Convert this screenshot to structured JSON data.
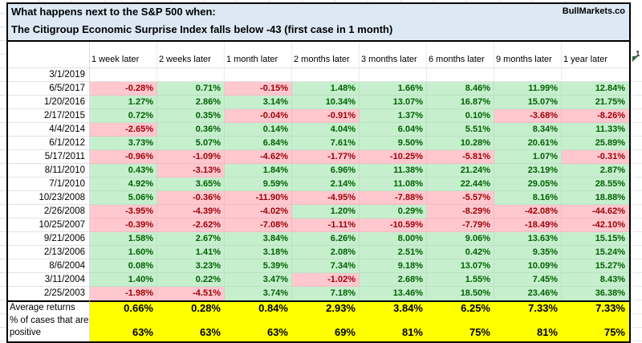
{
  "title": {
    "line1": "What happens next to the S&P 500 when:",
    "line2": "The Citigroup Economic Surprise Index falls below -43 (first case in 1 month)",
    "watermark": "BullMarkets.co"
  },
  "edge": {
    "header_fragment": "1"
  },
  "colors": {
    "positive_bg": "#c6efce",
    "positive_text": "#006100",
    "negative_bg": "#ffc7ce",
    "negative_text": "#9c0006",
    "title_bg": "#dce9f5",
    "summary_bg": "#ffff00"
  },
  "table": {
    "columns": [
      "1 week later",
      "2 weeks later",
      "1 month later",
      "2 months later",
      "3 months later",
      "6 months later",
      "9 months later",
      "1 year later"
    ],
    "rows": [
      {
        "date": "3/1/2019",
        "values": [
          "",
          "",
          "",
          "",
          "",
          "",
          "",
          ""
        ]
      },
      {
        "date": "6/5/2017",
        "values": [
          "-0.28%",
          "0.71%",
          "-0.15%",
          "1.48%",
          "1.66%",
          "8.46%",
          "11.99%",
          "12.84%"
        ]
      },
      {
        "date": "1/20/2016",
        "values": [
          "1.27%",
          "2.86%",
          "3.14%",
          "10.34%",
          "13.07%",
          "16.87%",
          "15.07%",
          "21.75%"
        ]
      },
      {
        "date": "2/17/2015",
        "values": [
          "0.72%",
          "0.35%",
          "-0.04%",
          "-0.91%",
          "1.37%",
          "0.10%",
          "-3.68%",
          "-8.26%"
        ]
      },
      {
        "date": "4/4/2014",
        "values": [
          "-2.65%",
          "0.36%",
          "0.14%",
          "4.04%",
          "6.04%",
          "5.51%",
          "8.34%",
          "11.33%"
        ]
      },
      {
        "date": "6/1/2012",
        "values": [
          "3.73%",
          "5.07%",
          "6.84%",
          "7.61%",
          "9.50%",
          "10.28%",
          "20.61%",
          "25.89%"
        ]
      },
      {
        "date": "5/17/2011",
        "values": [
          "-0.96%",
          "-1.09%",
          "-4.62%",
          "-1.77%",
          "-10.25%",
          "-5.81%",
          "1.07%",
          "-0.31%"
        ]
      },
      {
        "date": "8/11/2010",
        "values": [
          "0.43%",
          "-3.13%",
          "1.84%",
          "6.96%",
          "11.38%",
          "21.24%",
          "23.19%",
          "2.87%"
        ]
      },
      {
        "date": "7/1/2010",
        "values": [
          "4.92%",
          "3.65%",
          "9.59%",
          "2.14%",
          "11.08%",
          "22.44%",
          "29.05%",
          "28.55%"
        ]
      },
      {
        "date": "10/23/2008",
        "values": [
          "5.06%",
          "-0.36%",
          "-11.90%",
          "-4.95%",
          "-7.88%",
          "-5.57%",
          "8.16%",
          "18.88%"
        ]
      },
      {
        "date": "2/26/2008",
        "values": [
          "-3.95%",
          "-4.39%",
          "-4.02%",
          "1.20%",
          "0.29%",
          "-8.29%",
          "-42.08%",
          "-44.62%"
        ]
      },
      {
        "date": "10/25/2007",
        "values": [
          "-0.39%",
          "-2.62%",
          "-7.08%",
          "-1.11%",
          "-10.59%",
          "-7.79%",
          "-18.49%",
          "-42.10%"
        ]
      },
      {
        "date": "9/21/2006",
        "values": [
          "1.58%",
          "2.67%",
          "3.84%",
          "6.26%",
          "8.00%",
          "9.06%",
          "13.63%",
          "15.15%"
        ]
      },
      {
        "date": "2/13/2006",
        "values": [
          "1.60%",
          "1.41%",
          "3.18%",
          "2.08%",
          "2.51%",
          "0.42%",
          "9.35%",
          "15.24%"
        ]
      },
      {
        "date": "8/6/2004",
        "values": [
          "0.08%",
          "3.23%",
          "5.39%",
          "7.34%",
          "9.18%",
          "13.07%",
          "10.09%",
          "15.27%"
        ]
      },
      {
        "date": "3/11/2004",
        "values": [
          "1.40%",
          "0.22%",
          "3.47%",
          "-1.02%",
          "2.68%",
          "1.55%",
          "7.45%",
          "8.43%"
        ]
      },
      {
        "date": "2/25/2003",
        "values": [
          "-1.98%",
          "-4.51%",
          "3.74%",
          "7.18%",
          "13.46%",
          "18.50%",
          "23.46%",
          "36.38%"
        ]
      }
    ],
    "summary": {
      "avg_label": "Average returns",
      "avg_values": [
        "0.66%",
        "0.28%",
        "0.84%",
        "2.93%",
        "3.84%",
        "6.25%",
        "7.33%",
        "7.33%"
      ],
      "pct_label": "% of cases that are positive",
      "pct_values": [
        "63%",
        "63%",
        "63%",
        "69%",
        "81%",
        "75%",
        "81%",
        "75%"
      ]
    }
  }
}
